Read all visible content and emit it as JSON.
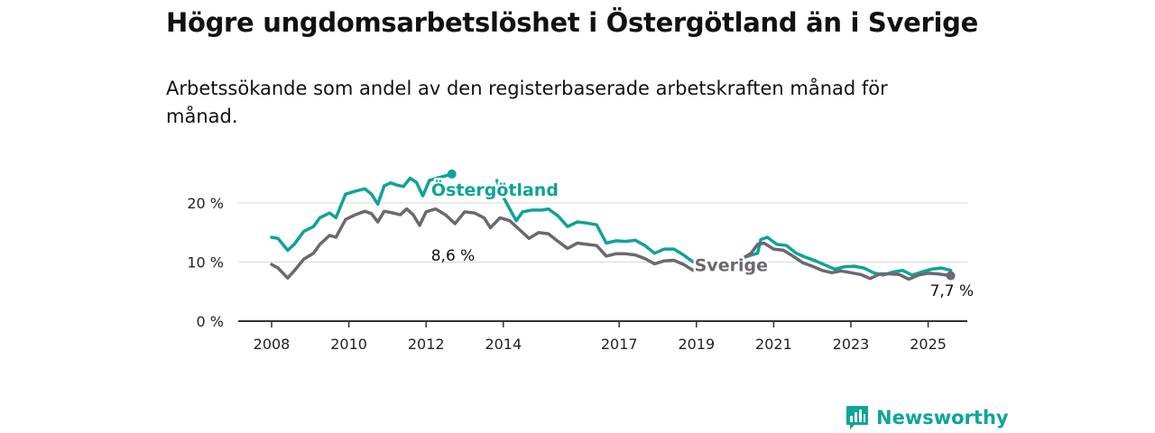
{
  "title": "Högre ungdomsarbetslöshet i Östergötland än i Sverige",
  "subtitle": "Arbetssökande som andel av den registerbaserade arbetskraften månad för månad.",
  "brand": {
    "name": "Newsworthy"
  },
  "colors": {
    "ostergotland": "#0fa398",
    "sverige": "#6b6870",
    "grid": "#d9d9d9",
    "axis": "#333333"
  },
  "chart_data": {
    "type": "line",
    "title": "Högre ungdomsarbetslöshet i Östergötland än i Sverige",
    "subtitle": "Arbetssökande som andel av den registerbaserade arbetskraften månad för månad.",
    "xlabel": "",
    "ylabel": "",
    "x_ticks": [
      "2008",
      "2010",
      "2012",
      "2014",
      "2017",
      "2019",
      "2021",
      "2023",
      "2025"
    ],
    "y_ticks": [
      "0 %",
      "10 %",
      "20 %"
    ],
    "ylim": [
      0,
      30
    ],
    "grid": true,
    "series": [
      {
        "name": "Östergötland",
        "end_label": "8,6 %",
        "values": [
          [
            "2008-01",
            14.2
          ],
          [
            "2008-03",
            14.0
          ],
          [
            "2008-06",
            12.0
          ],
          [
            "2008-08",
            13.0
          ],
          [
            "2008-11",
            15.2
          ],
          [
            "2009-02",
            16.0
          ],
          [
            "2009-04",
            17.5
          ],
          [
            "2009-07",
            18.3
          ],
          [
            "2009-09",
            17.5
          ],
          [
            "2009-12",
            21.5
          ],
          [
            "2010-03",
            22.0
          ],
          [
            "2010-06",
            22.4
          ],
          [
            "2010-08",
            21.5
          ],
          [
            "2010-10",
            19.8
          ],
          [
            "2010-12",
            22.9
          ],
          [
            "2011-02",
            23.4
          ],
          [
            "2011-04",
            23.0
          ],
          [
            "2011-06",
            22.8
          ],
          [
            "2011-08",
            24.2
          ],
          [
            "2011-10",
            23.5
          ],
          [
            "2011-12",
            21.2
          ],
          [
            "2012-02",
            23.8
          ],
          [
            "2012-05",
            24.3
          ],
          [
            "2012-07",
            24.6
          ],
          [
            "2012-09",
            24.9
          ]
        ]
      },
      {
        "name": "Östergötland",
        "values": [
          [
            "2013-11",
            23.8
          ],
          [
            "2014-01",
            21.0
          ],
          [
            "2014-03",
            19.0
          ],
          [
            "2014-05",
            17.0
          ],
          [
            "2014-07",
            18.5
          ],
          [
            "2014-10",
            18.8
          ],
          [
            "2015-01",
            18.8
          ],
          [
            "2015-03",
            19.0
          ],
          [
            "2015-06",
            17.8
          ],
          [
            "2015-09",
            16.0
          ],
          [
            "2015-12",
            16.8
          ],
          [
            "2016-03",
            16.6
          ],
          [
            "2016-06",
            16.3
          ],
          [
            "2016-09",
            13.2
          ],
          [
            "2016-12",
            13.6
          ],
          [
            "2017-03",
            13.5
          ],
          [
            "2017-06",
            13.7
          ],
          [
            "2017-09",
            12.8
          ],
          [
            "2017-12",
            11.5
          ],
          [
            "2018-03",
            12.2
          ],
          [
            "2018-06",
            12.2
          ],
          [
            "2018-09",
            11.2
          ],
          [
            "2018-12",
            10.0
          ],
          [
            "2019-03",
            10.0
          ]
        ]
      },
      {
        "name": "Östergötland",
        "values": [
          [
            "2020-02",
            10.4
          ],
          [
            "2020-05",
            11.0
          ],
          [
            "2020-08",
            11.5
          ],
          [
            "2020-09",
            13.8
          ],
          [
            "2020-11",
            14.2
          ],
          [
            "2021-02",
            13.0
          ],
          [
            "2021-05",
            12.8
          ],
          [
            "2021-08",
            11.5
          ],
          [
            "2021-11",
            10.8
          ],
          [
            "2022-02",
            10.2
          ],
          [
            "2022-05",
            9.5
          ],
          [
            "2022-08",
            8.8
          ],
          [
            "2022-11",
            9.2
          ],
          [
            "2023-02",
            9.3
          ],
          [
            "2023-05",
            9.0
          ],
          [
            "2023-08",
            8.2
          ],
          [
            "2023-11",
            7.8
          ],
          [
            "2024-02",
            8.3
          ],
          [
            "2024-05",
            8.6
          ],
          [
            "2024-08",
            7.8
          ],
          [
            "2024-11",
            8.3
          ],
          [
            "2025-02",
            8.8
          ],
          [
            "2025-05",
            9.0
          ],
          [
            "2025-08",
            8.6
          ]
        ]
      },
      {
        "name": "Sverige",
        "end_label": "7,7 %",
        "values": [
          [
            "2008-01",
            9.6
          ],
          [
            "2008-03",
            9.0
          ],
          [
            "2008-06",
            7.3
          ],
          [
            "2008-08",
            8.5
          ],
          [
            "2008-11",
            10.5
          ],
          [
            "2009-02",
            11.5
          ],
          [
            "2009-04",
            13.0
          ],
          [
            "2009-07",
            14.5
          ],
          [
            "2009-09",
            14.2
          ],
          [
            "2009-12",
            17.2
          ],
          [
            "2010-03",
            18.0
          ],
          [
            "2010-06",
            18.6
          ],
          [
            "2010-08",
            18.2
          ],
          [
            "2010-10",
            16.8
          ],
          [
            "2010-12",
            18.6
          ],
          [
            "2011-02",
            18.4
          ],
          [
            "2011-05",
            18.0
          ],
          [
            "2011-07",
            19.0
          ],
          [
            "2011-09",
            18.0
          ],
          [
            "2011-11",
            16.2
          ],
          [
            "2012-01",
            18.5
          ],
          [
            "2012-04",
            19.0
          ],
          [
            "2012-07",
            18.0
          ],
          [
            "2012-10",
            16.5
          ],
          [
            "2013-01",
            18.5
          ],
          [
            "2013-04",
            18.3
          ],
          [
            "2013-07",
            17.5
          ],
          [
            "2013-09",
            15.8
          ],
          [
            "2013-12",
            17.5
          ],
          [
            "2014-03",
            17.0
          ],
          [
            "2014-06",
            15.5
          ],
          [
            "2014-09",
            14.0
          ],
          [
            "2014-12",
            15.0
          ],
          [
            "2015-03",
            14.8
          ],
          [
            "2015-06",
            13.5
          ],
          [
            "2015-09",
            12.3
          ],
          [
            "2015-12",
            13.2
          ],
          [
            "2016-03",
            13.0
          ],
          [
            "2016-06",
            12.8
          ],
          [
            "2016-09",
            11.0
          ],
          [
            "2016-12",
            11.4
          ],
          [
            "2017-03",
            11.4
          ],
          [
            "2017-06",
            11.2
          ],
          [
            "2017-09",
            10.6
          ],
          [
            "2017-12",
            9.7
          ],
          [
            "2018-03",
            10.2
          ],
          [
            "2018-06",
            10.3
          ],
          [
            "2018-09",
            9.6
          ],
          [
            "2018-12",
            8.6
          ],
          [
            "2019-03",
            9.5
          ],
          [
            "2019-06",
            9.6
          ],
          [
            "2019-09",
            9.2
          ],
          [
            "2019-12",
            9.4
          ],
          [
            "2020-03",
            10.5
          ],
          [
            "2020-06",
            11.5
          ],
          [
            "2020-08",
            13.0
          ],
          [
            "2020-10",
            13.2
          ],
          [
            "2021-01",
            12.2
          ],
          [
            "2021-04",
            12.0
          ],
          [
            "2021-07",
            11.0
          ],
          [
            "2021-10",
            9.9
          ],
          [
            "2022-01",
            9.3
          ],
          [
            "2022-04",
            8.6
          ],
          [
            "2022-07",
            8.2
          ],
          [
            "2022-10",
            8.5
          ],
          [
            "2023-01",
            8.2
          ],
          [
            "2023-04",
            7.9
          ],
          [
            "2023-07",
            7.2
          ],
          [
            "2023-10",
            8.0
          ],
          [
            "2024-01",
            8.0
          ],
          [
            "2024-04",
            7.9
          ],
          [
            "2024-07",
            7.1
          ],
          [
            "2024-10",
            7.8
          ],
          [
            "2025-01",
            8.1
          ],
          [
            "2025-04",
            8.0
          ],
          [
            "2025-08",
            7.7
          ]
        ]
      }
    ],
    "series_labels": [
      {
        "text": "Östergötland",
        "at": [
          "2014-03",
          21.2
        ]
      },
      {
        "text": "Sverige",
        "at": [
          "2019-06",
          8.5
        ]
      }
    ]
  }
}
